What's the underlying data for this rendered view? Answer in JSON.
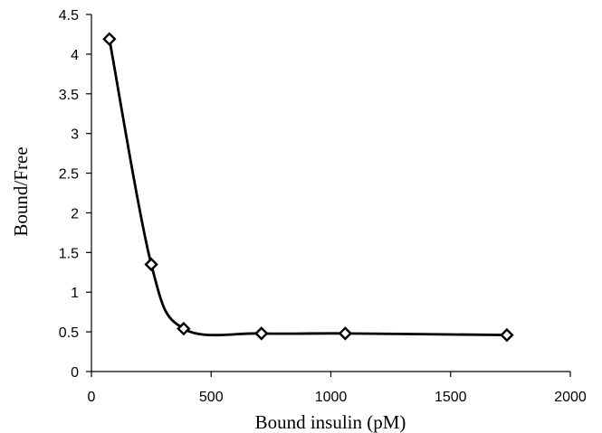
{
  "chart_data": {
    "type": "line",
    "title": "",
    "xlabel": "Bound insulin (pM)",
    "ylabel": "Bound/Free",
    "xlim": [
      0,
      2000
    ],
    "ylim": [
      0,
      4.5
    ],
    "x_ticks": [
      0,
      500,
      1000,
      1500,
      2000
    ],
    "y_ticks": [
      0,
      0.5,
      1,
      1.5,
      2,
      2.5,
      3,
      3.5,
      4,
      4.5
    ],
    "grid": false,
    "legend": "none",
    "smooth": true,
    "marker": "diamond-open",
    "series": [
      {
        "color": "#000000",
        "points": [
          {
            "x": 75,
            "y": 4.19
          },
          {
            "x": 250,
            "y": 1.35
          },
          {
            "x": 385,
            "y": 0.54
          },
          {
            "x": 710,
            "y": 0.48
          },
          {
            "x": 1060,
            "y": 0.48
          },
          {
            "x": 1735,
            "y": 0.46
          }
        ]
      }
    ]
  }
}
